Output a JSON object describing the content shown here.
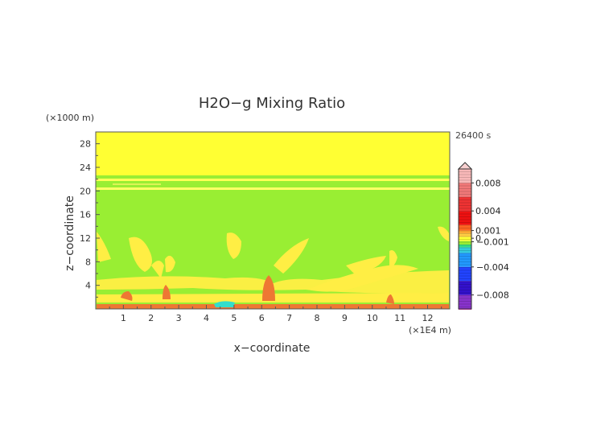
{
  "chart_data": {
    "type": "heatmap",
    "title": "H2O−g Mixing Ratio",
    "xlabel": "x−coordinate",
    "ylabel": "z−coordinate",
    "x_unit": "(×1E4 m)",
    "y_unit": "(×1000 m)",
    "timestamp": "26400 s",
    "xlim": [
      0,
      12.8
    ],
    "ylim": [
      0,
      30
    ],
    "x_ticks": [
      "1",
      "2",
      "3",
      "4",
      "5",
      "6",
      "7",
      "8",
      "9",
      "10",
      "11",
      "12"
    ],
    "y_ticks": [
      "4",
      "8",
      "12",
      "16",
      "20",
      "24",
      "28"
    ],
    "colorbar": {
      "range": [
        -0.01,
        0.01
      ],
      "labels": [
        "0.008",
        "0.004",
        "0.001",
        "0",
        "−0.001",
        "−0.004",
        "−0.008"
      ],
      "label_values": [
        0.008,
        0.004,
        0.001,
        0,
        -0.001,
        -0.004,
        -0.008
      ]
    },
    "colors": {
      "background_field": "#99ee33",
      "upper_layer": "#ffff33",
      "positive_anomaly": "#ffee44",
      "strong_positive": "#ee7733",
      "negative_anomaly": "#33ddcc"
    }
  }
}
